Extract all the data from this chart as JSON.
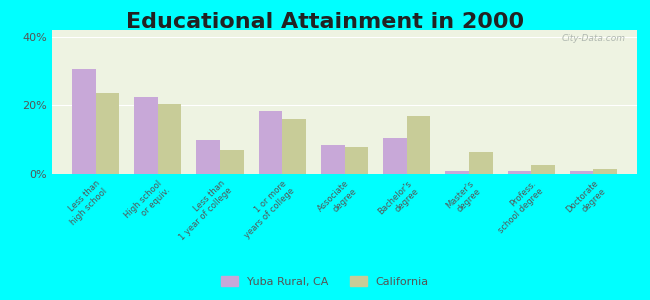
{
  "title": "Educational Attainment in 2000",
  "categories": [
    "Less than\nhigh school",
    "High school\nor equiv.",
    "Less than\n1 year of college",
    "1 or more\nyears of college",
    "Associate\ndegree",
    "Bachelor's\ndegree",
    "Master's\ndegree",
    "Profess.\nschool degree",
    "Doctorate\ndegree"
  ],
  "yuba_values": [
    30.5,
    22.5,
    10.0,
    18.5,
    8.5,
    10.5,
    1.0,
    1.0,
    1.0
  ],
  "california_values": [
    23.5,
    20.5,
    7.0,
    16.0,
    8.0,
    17.0,
    6.5,
    2.5,
    1.5
  ],
  "yuba_color": "#c8a8d8",
  "california_color": "#c8cc98",
  "background_color": "#00ffff",
  "plot_bg_color": "#eef3e2",
  "ylim": [
    0,
    42
  ],
  "yticks": [
    0,
    20,
    40
  ],
  "yticklabels": [
    "0%",
    "20%",
    "40%"
  ],
  "title_fontsize": 16,
  "legend_labels": [
    "Yuba Rural, CA",
    "California"
  ],
  "bar_width": 0.38
}
